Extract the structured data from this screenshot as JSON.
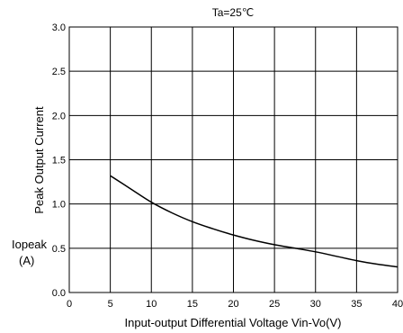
{
  "chart_data": {
    "type": "line",
    "title": "Ta=25℃",
    "xlabel": "Input-output Differential Voltage Vin-Vo(V)",
    "ylabel": "Peak Output Current",
    "ylabel_symbol": "Iopeak",
    "ylabel_unit": "(A)",
    "xlim": [
      0,
      40
    ],
    "ylim": [
      0,
      3.0
    ],
    "x_ticks": [
      "0",
      "5",
      "10",
      "15",
      "20",
      "25",
      "30",
      "35",
      "40"
    ],
    "y_ticks": [
      "0.0",
      "0.5",
      "1.0",
      "1.5",
      "2.0",
      "2.5",
      "3.0"
    ],
    "grid": true,
    "series": [
      {
        "x": [
          5,
          7.5,
          10,
          12.5,
          15,
          17.5,
          20,
          22.5,
          25,
          27.5,
          30,
          32.5,
          35,
          37.5,
          40
        ],
        "y": [
          1.32,
          1.17,
          1.02,
          0.9,
          0.8,
          0.72,
          0.65,
          0.59,
          0.54,
          0.5,
          0.46,
          0.41,
          0.36,
          0.32,
          0.29
        ]
      }
    ]
  }
}
